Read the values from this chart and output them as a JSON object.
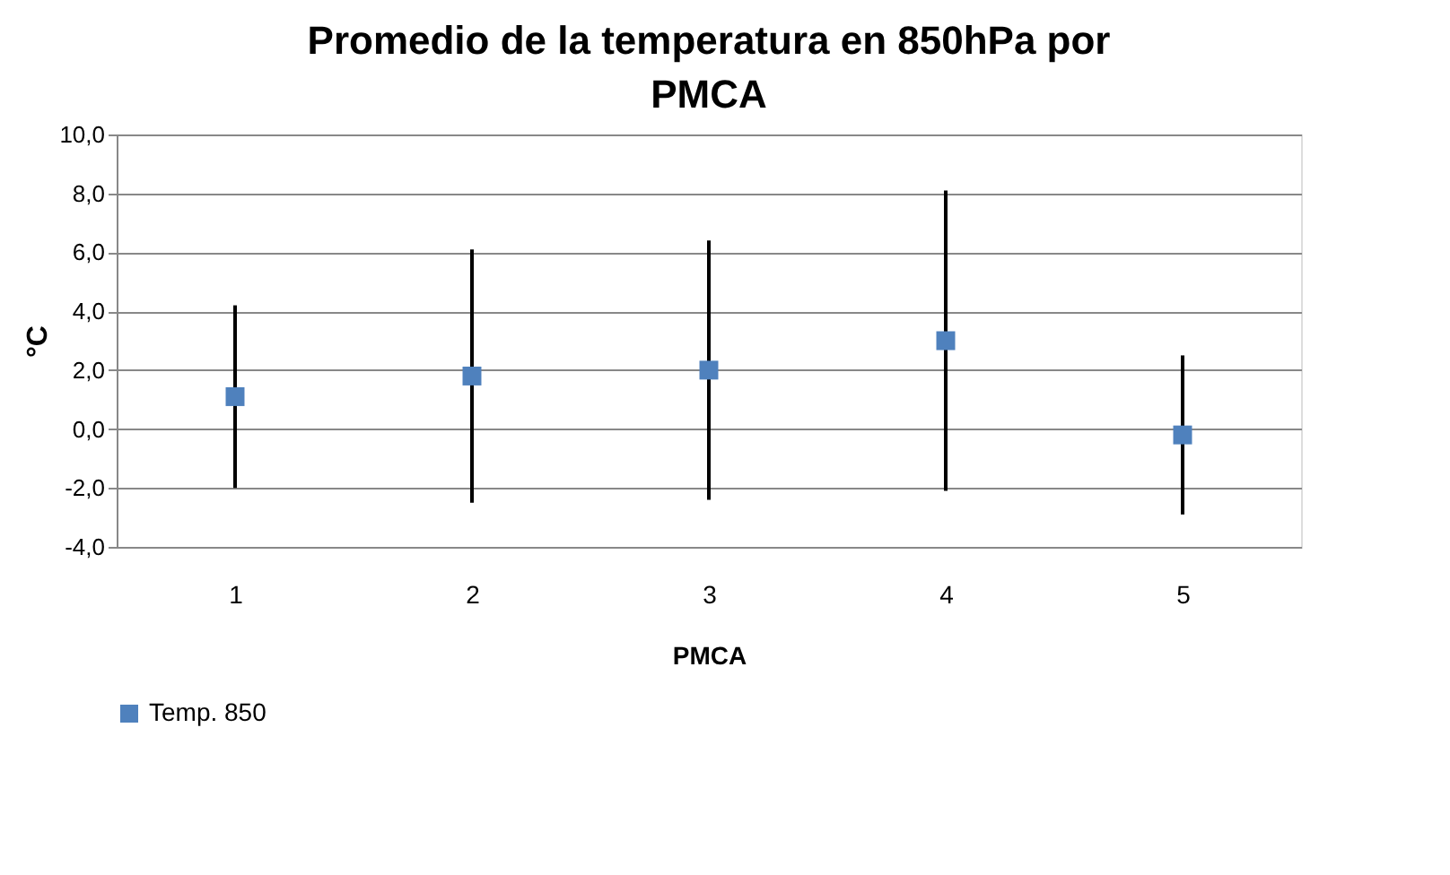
{
  "chart_data": {
    "type": "scatter",
    "title": "Promedio de la temperatura en 850hPa por PMCA",
    "xlabel": "PMCA",
    "ylabel": "°C",
    "categories": [
      "1",
      "2",
      "3",
      "4",
      "5"
    ],
    "series": [
      {
        "name": "Temp. 850",
        "color": "#4f81bd",
        "values": [
          1.1,
          1.8,
          2.0,
          3.0,
          -0.2
        ],
        "errors": [
          3.1,
          4.3,
          4.4,
          5.1,
          2.7
        ]
      }
    ],
    "ylim": [
      -4,
      10
    ],
    "yticks": [
      {
        "value": -4,
        "label": "-4,0"
      },
      {
        "value": -2,
        "label": "-2,0"
      },
      {
        "value": 0,
        "label": "0,0"
      },
      {
        "value": 2,
        "label": "2,0"
      },
      {
        "value": 4,
        "label": "4,0"
      },
      {
        "value": 6,
        "label": "6,0"
      },
      {
        "value": 8,
        "label": "8,0"
      },
      {
        "value": 10,
        "label": "10,0"
      }
    ],
    "grid": "y",
    "legend": "bottom",
    "marker": "square"
  }
}
